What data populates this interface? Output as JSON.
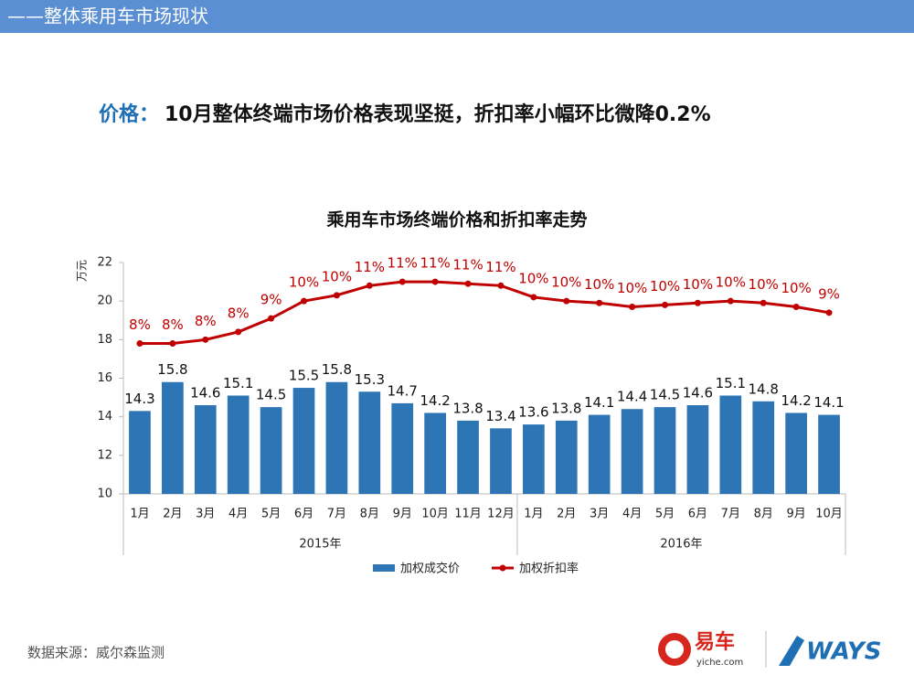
{
  "header": "——整体乘用车市场现状",
  "headline": {
    "label": "价格：",
    "text": "10月整体终端市场价格表现坚挺，折扣率小幅环比微降0.2%"
  },
  "source": "数据来源：威尔森监测",
  "logos": {
    "yiche": "易车",
    "yiche_url": "yiche.com",
    "ways": "WAYS"
  },
  "chart_data": {
    "type": "bar-line",
    "title": "乘用车市场终端价格和折扣率走势",
    "ylabel": "万元",
    "groups": [
      {
        "label": "2015年",
        "categories": [
          "1月",
          "2月",
          "3月",
          "4月",
          "5月",
          "6月",
          "7月",
          "8月",
          "9月",
          "10月",
          "11月",
          "12月"
        ]
      },
      {
        "label": "2016年",
        "categories": [
          "1月",
          "2月",
          "3月",
          "4月",
          "5月",
          "6月",
          "7月",
          "8月",
          "9月",
          "10月"
        ]
      }
    ],
    "ylim": [
      10,
      22
    ],
    "yticks": [
      10,
      12,
      14,
      16,
      18,
      20,
      22
    ],
    "y2lim": [
      0,
      12
    ],
    "legend": "bottom",
    "series": [
      {
        "name": "加权成交价",
        "type": "bar",
        "color": "#2e75b6",
        "values": [
          14.3,
          15.8,
          14.6,
          15.1,
          14.5,
          15.5,
          15.8,
          15.3,
          14.7,
          14.2,
          13.8,
          13.4,
          13.6,
          13.8,
          14.1,
          14.4,
          14.5,
          14.6,
          15.1,
          14.8,
          14.2,
          14.1
        ]
      },
      {
        "name": "加权折扣率",
        "type": "line",
        "axis": "y2",
        "color": "#c00000",
        "values": [
          7.8,
          7.8,
          8.0,
          8.4,
          9.1,
          10.0,
          10.3,
          10.8,
          11.0,
          11.0,
          10.9,
          10.8,
          10.2,
          10.0,
          9.9,
          9.7,
          9.8,
          9.9,
          10.0,
          9.9,
          9.7,
          9.4
        ],
        "value_labels": [
          "8%",
          "8%",
          "8%",
          "8%",
          "9%",
          "10%",
          "10%",
          "11%",
          "11%",
          "11%",
          "11%",
          "11%",
          "10%",
          "10%",
          "10%",
          "10%",
          "10%",
          "10%",
          "10%",
          "10%",
          "10%",
          "9%"
        ]
      }
    ]
  }
}
